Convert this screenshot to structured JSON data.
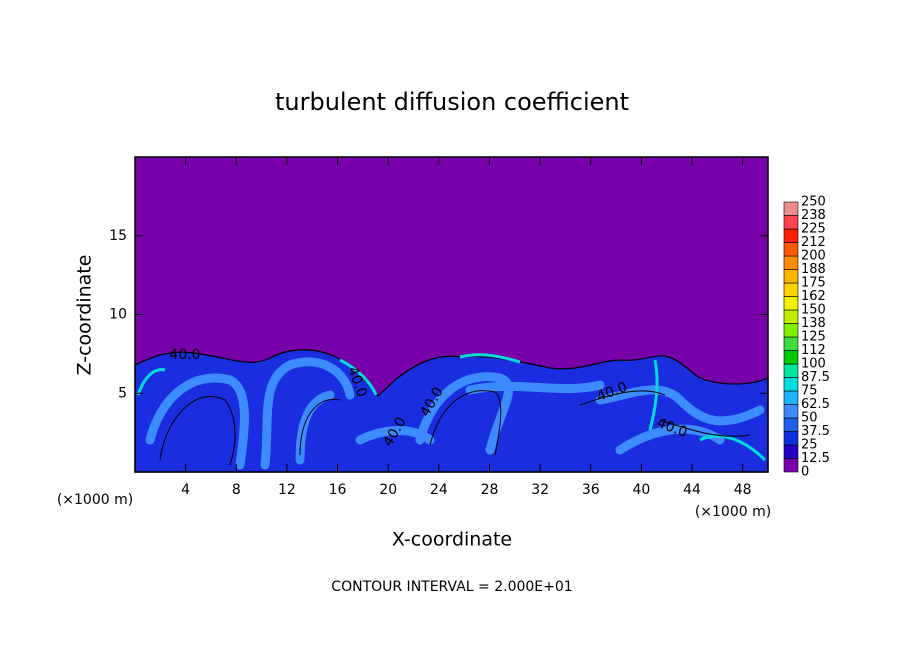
{
  "chart_data": {
    "type": "contour",
    "title": "turbulent diffusion coefficient",
    "xlabel": "X-coordinate",
    "ylabel": "Z-coordinate",
    "x_unit": "(×1000 m)",
    "y_unit": "(×1000 m)",
    "xlim": [
      0,
      50
    ],
    "ylim": [
      0,
      20
    ],
    "xticks": [
      4,
      8,
      12,
      16,
      20,
      24,
      28,
      32,
      36,
      40,
      44,
      48
    ],
    "yticks": [
      5,
      10,
      15
    ],
    "contour_labels": [
      "40.0",
      "40.0",
      "40.0",
      "40.0",
      "40.0",
      "40.0"
    ],
    "footnote": "CONTOUR INTERVAL = 2.000E+01",
    "colorbar": {
      "levels": [
        0,
        12.5,
        25,
        37.5,
        50,
        62.5,
        75,
        87.5,
        100,
        {
          "value": 112.5,
          "label": "112"
        },
        125,
        {
          "value": 137.5,
          "label": "138"
        },
        150,
        {
          "value": 162.5,
          "label": "162"
        },
        175,
        {
          "value": 187.5,
          "label": "188"
        },
        200,
        {
          "value": 212.5,
          "label": "212"
        },
        225,
        {
          "value": 237.5,
          "label": "238"
        },
        250
      ],
      "colors": [
        "#7800aa",
        "#2800c8",
        "#1030e0",
        "#2060f0",
        "#3c8cff",
        "#20b4ff",
        "#00dcdc",
        "#00e6a0",
        "#00c800",
        "#40dc40",
        "#80f000",
        "#c0f000",
        "#f0f000",
        "#ffd200",
        "#ffb400",
        "#ff8c00",
        "#ff5a00",
        "#ff2000",
        "#ff4650",
        "#f08c8c"
      ]
    }
  }
}
